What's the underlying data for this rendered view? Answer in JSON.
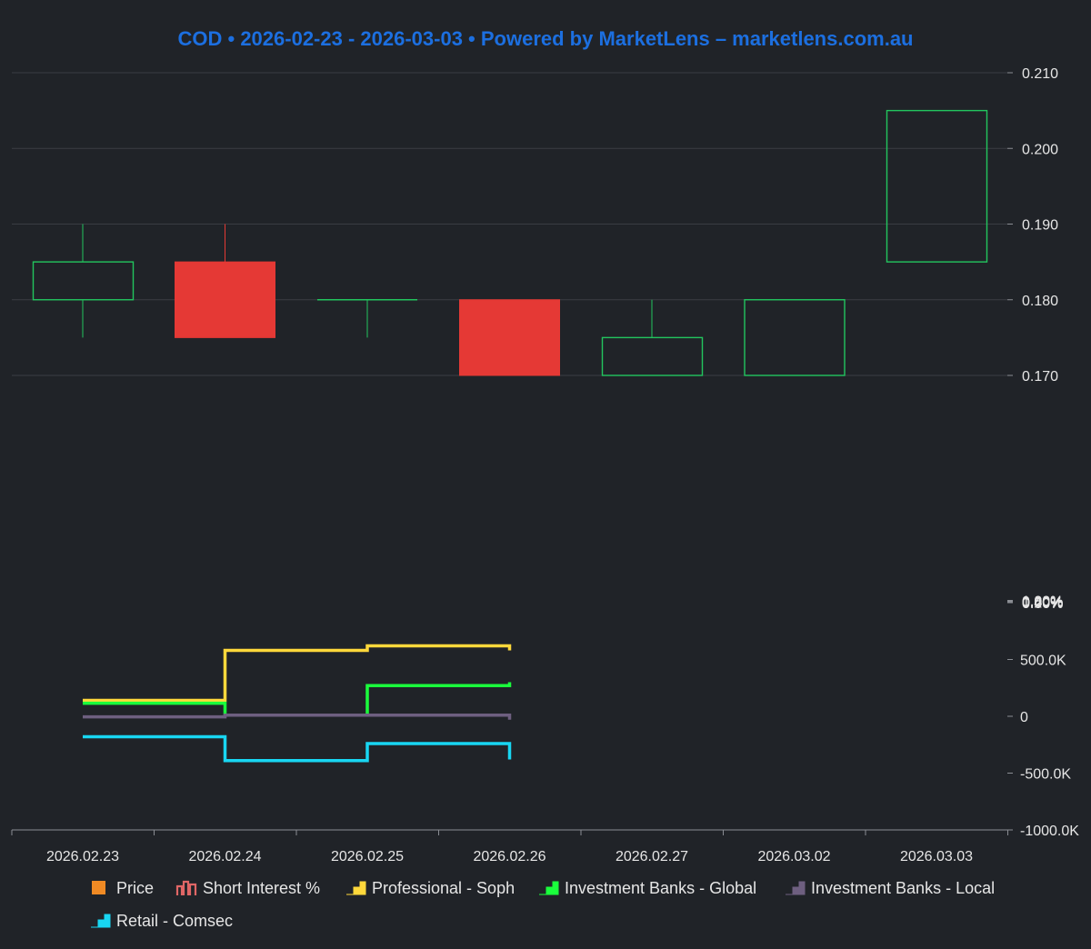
{
  "colors": {
    "background": "#202328",
    "title": "#1c6fe0",
    "grid": "#3a3d43",
    "axis_text": "#e6e6e6",
    "axis_line": "#8a8d93",
    "up": "#22c55e",
    "down": "#e53935",
    "price_legend": "#f08a24",
    "short_interest": "#e06666",
    "professional_soph": "#ffd83b",
    "ib_global": "#1aff3c",
    "ib_local": "#6e5f80",
    "retail_comsec": "#18d6f2"
  },
  "chart_data": {
    "type": "candlestick-with-panels",
    "title": "COD • 2026-02-23 - 2026-03-03 • Powered by MarketLens – marketlens.com.au",
    "dates": [
      "2026.02.23",
      "2026.02.24",
      "2026.02.25",
      "2026.02.26",
      "2026.02.27",
      "2026.03.02",
      "2026.03.03"
    ],
    "price_panel": {
      "ylim": [
        0.17,
        0.21
      ],
      "ticks": [
        "0.210",
        "0.200",
        "0.190",
        "0.180",
        "0.170"
      ],
      "candles": [
        {
          "date": "2026.02.23",
          "open": 0.18,
          "high": 0.19,
          "low": 0.175,
          "close": 0.185
        },
        {
          "date": "2026.02.24",
          "open": 0.185,
          "high": 0.19,
          "low": 0.175,
          "close": 0.175
        },
        {
          "date": "2026.02.25",
          "open": 0.18,
          "high": 0.18,
          "low": 0.175,
          "close": 0.18
        },
        {
          "date": "2026.02.26",
          "open": 0.18,
          "high": 0.18,
          "low": 0.17,
          "close": 0.17
        },
        {
          "date": "2026.02.27",
          "open": 0.17,
          "high": 0.18,
          "low": 0.17,
          "close": 0.175
        },
        {
          "date": "2026.03.02",
          "open": 0.17,
          "high": 0.18,
          "low": 0.17,
          "close": 0.18
        },
        {
          "date": "2026.03.03",
          "open": 0.185,
          "high": 0.205,
          "low": 0.185,
          "close": 0.205
        }
      ]
    },
    "short_interest_panel": {
      "ylim": [
        0,
        1.0
      ],
      "ticks": [
        "1.00%",
        "0.80%",
        "0.60%",
        "0.40%",
        "0.20%",
        "0.00%"
      ],
      "values": []
    },
    "flows_panel": {
      "ylim": [
        -1000000,
        1000000
      ],
      "ticks": [
        "500.0K",
        "0",
        "-500.0K",
        "-1000.0K"
      ],
      "tick_values": [
        500000,
        0,
        -500000,
        -1000000
      ],
      "series": [
        {
          "name": "Professional - Soph",
          "color_key": "professional_soph",
          "values": [
            140000,
            580000,
            620000,
            620000
          ]
        },
        {
          "name": "Investment Banks - Global",
          "color_key": "ib_global",
          "values": [
            115000,
            10000,
            270000,
            300000
          ]
        },
        {
          "name": "Investment Banks - Local",
          "color_key": "ib_local",
          "values": [
            -5000,
            10000,
            10000,
            10000
          ]
        },
        {
          "name": "Retail - Comsec",
          "color_key": "retail_comsec",
          "values": [
            -180000,
            -390000,
            -240000,
            -340000
          ]
        }
      ]
    },
    "legend": [
      {
        "label": "Price",
        "color_key": "price_legend",
        "kind": "square"
      },
      {
        "label": "Short Interest %",
        "color_key": "short_interest",
        "kind": "bars"
      },
      {
        "label": "Professional - Soph",
        "color_key": "professional_soph",
        "kind": "step"
      },
      {
        "label": "Investment Banks - Global",
        "color_key": "ib_global",
        "kind": "step"
      },
      {
        "label": "Investment Banks - Local",
        "color_key": "ib_local",
        "kind": "step"
      },
      {
        "label": "Retail - Comsec",
        "color_key": "retail_comsec",
        "kind": "step"
      }
    ]
  }
}
